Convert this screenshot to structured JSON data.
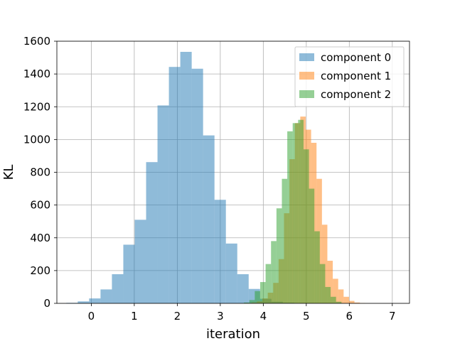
{
  "chart_data": {
    "type": "bar",
    "subtype": "histogram",
    "xlabel": "iteration",
    "ylabel": "KL",
    "xlim": [
      -0.8,
      7.4
    ],
    "ylim": [
      0,
      1600
    ],
    "xticks": [
      0,
      1,
      2,
      3,
      4,
      5,
      6,
      7
    ],
    "yticks": [
      0,
      200,
      400,
      600,
      800,
      1000,
      1200,
      1400,
      1600
    ],
    "grid": true,
    "legend_position": "top-right",
    "series": [
      {
        "name": "component 0",
        "color": "#1f77b4",
        "alpha": 0.5,
        "bin_start": -0.58,
        "bin_width": 0.265,
        "counts": [
          3,
          12,
          30,
          85,
          178,
          358,
          510,
          862,
          1208,
          1443,
          1535,
          1432,
          1025,
          632,
          365,
          178,
          88,
          28,
          10,
          4
        ]
      },
      {
        "name": "component 1",
        "color": "#ff7f0e",
        "alpha": 0.5,
        "bin_start": 3.6,
        "bin_width": 0.126,
        "counts": [
          2,
          5,
          12,
          30,
          65,
          125,
          270,
          550,
          880,
          1100,
          1140,
          1060,
          980,
          760,
          480,
          260,
          150,
          85,
          40,
          15,
          5,
          2
        ]
      },
      {
        "name": "component 2",
        "color": "#2ca02c",
        "alpha": 0.5,
        "bin_start": 3.55,
        "bin_width": 0.126,
        "counts": [
          5,
          20,
          75,
          130,
          240,
          380,
          580,
          760,
          1050,
          1100,
          1120,
          940,
          700,
          440,
          240,
          100,
          40,
          10
        ]
      }
    ]
  }
}
